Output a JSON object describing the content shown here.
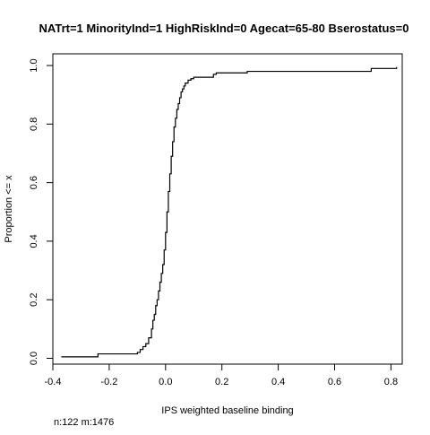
{
  "chart_data": {
    "type": "line",
    "subtype": "ecdf-step",
    "title": "NATrt=1 MinorityInd=1 HighRiskInd=0 Agecat=65-80 Bserostatus=0",
    "xlabel": "IPS weighted baseline binding",
    "ylabel": "Proportion <= x",
    "footnote": "n:122 m:1476",
    "xlim": [
      -0.4,
      0.84
    ],
    "ylim": [
      -0.02,
      1.04
    ],
    "x_ticks": [
      -0.4,
      -0.2,
      0.0,
      0.2,
      0.4,
      0.6,
      0.8
    ],
    "x_tick_labels": [
      "-0.4",
      "-0.2",
      "0.0",
      "0.2",
      "0.4",
      "0.6",
      "0.8"
    ],
    "y_ticks": [
      0.0,
      0.2,
      0.4,
      0.6,
      0.8,
      1.0
    ],
    "y_tick_labels": [
      "0.0",
      "0.2",
      "0.4",
      "0.6",
      "0.8",
      "1.0"
    ],
    "grid": false,
    "legend": "none",
    "line_color": "#000000",
    "series": [
      {
        "points": [
          [
            -0.37,
            0.005
          ],
          [
            -0.24,
            0.005
          ],
          [
            -0.24,
            0.015
          ],
          [
            -0.1,
            0.015
          ],
          [
            -0.1,
            0.02
          ],
          [
            -0.09,
            0.02
          ],
          [
            -0.09,
            0.03
          ],
          [
            -0.08,
            0.03
          ],
          [
            -0.08,
            0.04
          ],
          [
            -0.07,
            0.04
          ],
          [
            -0.07,
            0.05
          ],
          [
            -0.06,
            0.05
          ],
          [
            -0.06,
            0.07
          ],
          [
            -0.05,
            0.07
          ],
          [
            -0.05,
            0.1
          ],
          [
            -0.045,
            0.1
          ],
          [
            -0.045,
            0.13
          ],
          [
            -0.04,
            0.13
          ],
          [
            -0.04,
            0.15
          ],
          [
            -0.035,
            0.15
          ],
          [
            -0.035,
            0.18
          ],
          [
            -0.03,
            0.18
          ],
          [
            -0.03,
            0.2
          ],
          [
            -0.025,
            0.2
          ],
          [
            -0.025,
            0.23
          ],
          [
            -0.02,
            0.23
          ],
          [
            -0.02,
            0.26
          ],
          [
            -0.015,
            0.26
          ],
          [
            -0.015,
            0.29
          ],
          [
            -0.01,
            0.29
          ],
          [
            -0.01,
            0.32
          ],
          [
            -0.005,
            0.32
          ],
          [
            -0.005,
            0.37
          ],
          [
            0.0,
            0.37
          ],
          [
            0.0,
            0.43
          ],
          [
            0.005,
            0.43
          ],
          [
            0.005,
            0.5
          ],
          [
            0.01,
            0.5
          ],
          [
            0.01,
            0.57
          ],
          [
            0.015,
            0.57
          ],
          [
            0.015,
            0.63
          ],
          [
            0.02,
            0.63
          ],
          [
            0.02,
            0.69
          ],
          [
            0.025,
            0.69
          ],
          [
            0.025,
            0.74
          ],
          [
            0.03,
            0.74
          ],
          [
            0.03,
            0.79
          ],
          [
            0.035,
            0.79
          ],
          [
            0.035,
            0.82
          ],
          [
            0.04,
            0.82
          ],
          [
            0.04,
            0.85
          ],
          [
            0.045,
            0.85
          ],
          [
            0.045,
            0.87
          ],
          [
            0.05,
            0.87
          ],
          [
            0.05,
            0.89
          ],
          [
            0.055,
            0.89
          ],
          [
            0.055,
            0.91
          ],
          [
            0.06,
            0.91
          ],
          [
            0.06,
            0.92
          ],
          [
            0.065,
            0.92
          ],
          [
            0.065,
            0.93
          ],
          [
            0.07,
            0.93
          ],
          [
            0.07,
            0.94
          ],
          [
            0.08,
            0.94
          ],
          [
            0.08,
            0.95
          ],
          [
            0.09,
            0.95
          ],
          [
            0.09,
            0.955
          ],
          [
            0.1,
            0.955
          ],
          [
            0.1,
            0.96
          ],
          [
            0.17,
            0.96
          ],
          [
            0.17,
            0.97
          ],
          [
            0.18,
            0.97
          ],
          [
            0.18,
            0.975
          ],
          [
            0.29,
            0.975
          ],
          [
            0.29,
            0.98
          ],
          [
            0.73,
            0.98
          ],
          [
            0.73,
            0.99
          ],
          [
            0.82,
            0.99
          ],
          [
            0.82,
            0.995
          ]
        ]
      }
    ]
  }
}
